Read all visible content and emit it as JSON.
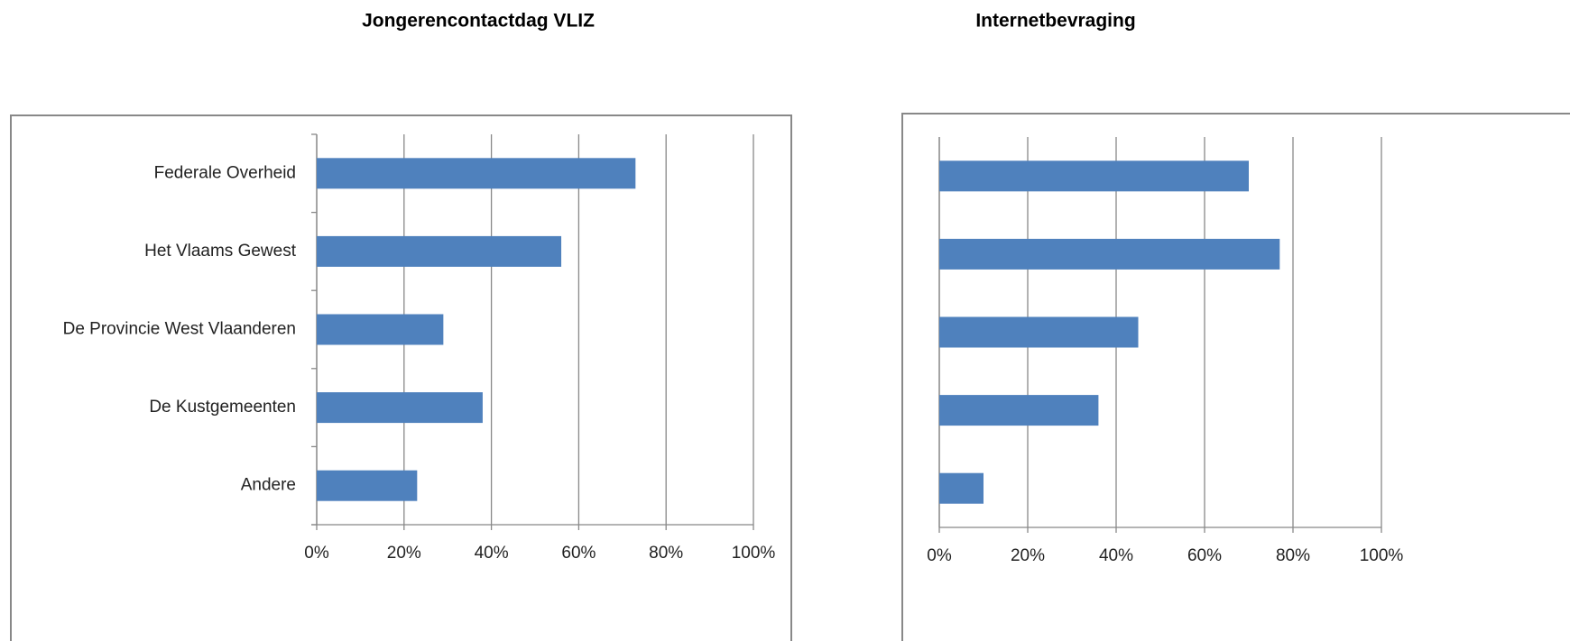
{
  "chart_data": [
    {
      "type": "bar",
      "orientation": "horizontal",
      "title": "Jongerencontactdag VLIZ",
      "categories": [
        "Federale Overheid",
        "Het Vlaams Gewest",
        "De Provincie West Vlaanderen",
        "De Kustgemeenten",
        "Andere"
      ],
      "values": [
        73,
        56,
        29,
        38,
        23
      ],
      "color": "#4f81bd",
      "xlim": [
        0,
        100
      ],
      "xticks": [
        {
          "value": 0,
          "label": "0%"
        },
        {
          "value": 20,
          "label": "20%"
        },
        {
          "value": 40,
          "label": "40%"
        },
        {
          "value": 60,
          "label": "60%"
        },
        {
          "value": 80,
          "label": "80%"
        },
        {
          "value": 100,
          "label": "100%"
        }
      ],
      "grid": true
    },
    {
      "type": "bar",
      "orientation": "horizontal",
      "title": "Internetbevraging",
      "categories": [
        null,
        null,
        null,
        null,
        null
      ],
      "values": [
        70,
        77,
        45,
        36,
        10
      ],
      "color": "#4f81bd",
      "xlim": [
        0,
        100
      ],
      "xticks": [
        {
          "value": 0,
          "label": "0%"
        },
        {
          "value": 20,
          "label": "20%"
        },
        {
          "value": 40,
          "label": "40%"
        },
        {
          "value": 60,
          "label": "60%"
        },
        {
          "value": 80,
          "label": "80%"
        },
        {
          "value": 100,
          "label": "100%"
        }
      ],
      "grid": true
    }
  ]
}
